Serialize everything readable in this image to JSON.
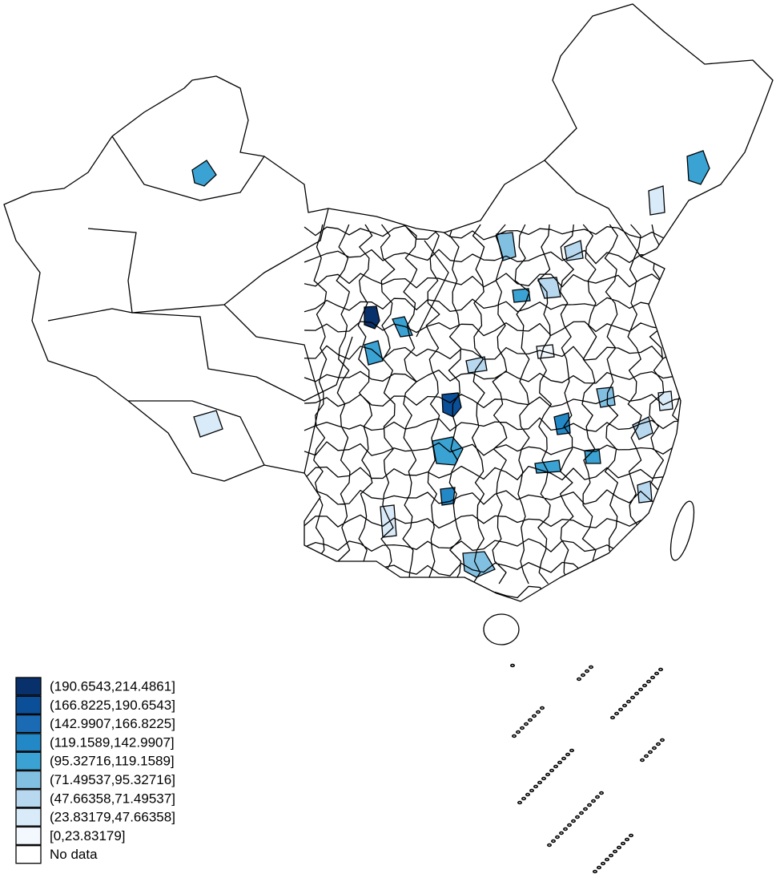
{
  "legend": {
    "items": [
      {
        "label": "(190.6543,214.4861]",
        "color": "#08306b"
      },
      {
        "label": "(166.8225,190.6543]",
        "color": "#0a4f98"
      },
      {
        "label": "(142.9907,166.8225]",
        "color": "#1b6bb4"
      },
      {
        "label": "(119.1589,142.9907]",
        "color": "#2388c6"
      },
      {
        "label": "(95.32716,119.1589]",
        "color": "#3ba3d3"
      },
      {
        "label": "(71.49537,95.32716]",
        "color": "#82c0e2"
      },
      {
        "label": "(47.66358,71.49537]",
        "color": "#b7d8ef"
      },
      {
        "label": "(23.83179,47.66358]",
        "color": "#d9eaf8"
      },
      {
        "label": "[0,23.83179]",
        "color": "#f2f8fd"
      },
      {
        "label": "No data",
        "color": "#ffffff"
      }
    ]
  }
}
